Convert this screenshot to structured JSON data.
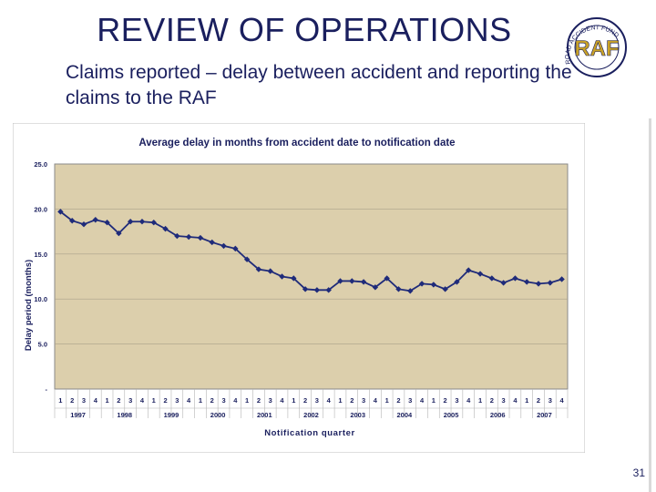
{
  "slide": {
    "title": "REVIEW OF OPERATIONS",
    "subtitle": "Claims reported – delay between accident and reporting the claims to the RAF",
    "page_number": "31",
    "logo_text": "RAF",
    "logo_ring_text": "ROAD ACCIDENT FUND"
  },
  "colors": {
    "title": "#1a1f5e",
    "plot_bg": "#dccfac",
    "plot_border": "#8a8a8a",
    "series": "#1f2b7a",
    "logo_gold": "#c9a227"
  },
  "chart_data": {
    "type": "line",
    "title": "Average delay in months from accident date to notification date",
    "xlabel": "Notification quarter",
    "ylabel": "Delay period (months)",
    "ylim": [
      0,
      25
    ],
    "y_ticks": [
      {
        "value": 0,
        "label": "-"
      },
      {
        "value": 5,
        "label": "5.0"
      },
      {
        "value": 10,
        "label": "10.0"
      },
      {
        "value": 15,
        "label": "15.0"
      },
      {
        "value": 20,
        "label": "20.0"
      },
      {
        "value": 25,
        "label": "25.0"
      }
    ],
    "grid": true,
    "legend": "none",
    "quarters": [
      "1",
      "2",
      "3",
      "4",
      "1",
      "2",
      "3",
      "4",
      "1",
      "2",
      "3",
      "4",
      "1",
      "2",
      "3",
      "4",
      "1",
      "2",
      "3",
      "4",
      "1",
      "2",
      "3",
      "4",
      "1",
      "2",
      "3",
      "4",
      "1",
      "2",
      "3",
      "4",
      "1",
      "2",
      "3",
      "4",
      "1",
      "2",
      "3",
      "4",
      "1",
      "2",
      "3",
      "4"
    ],
    "years": [
      "1997",
      "1998",
      "1999",
      "2000",
      "2001",
      "2002",
      "2003",
      "2004",
      "2005",
      "2006",
      "2007"
    ],
    "series": [
      {
        "values": [
          19.7,
          18.7,
          18.3,
          18.8,
          18.5,
          17.3,
          18.6,
          18.6,
          18.5,
          17.8,
          17.0,
          16.9,
          16.8,
          16.3,
          15.9,
          15.6,
          14.4,
          13.3,
          13.1,
          12.5,
          12.3,
          11.1,
          11.0,
          11.0,
          12.0,
          12.0,
          11.9,
          11.3,
          12.3,
          11.1,
          10.9,
          11.7,
          11.6,
          11.1,
          11.9,
          13.2,
          12.8,
          12.3,
          11.8,
          12.3,
          11.9,
          11.7,
          11.8,
          12.2
        ]
      }
    ]
  }
}
